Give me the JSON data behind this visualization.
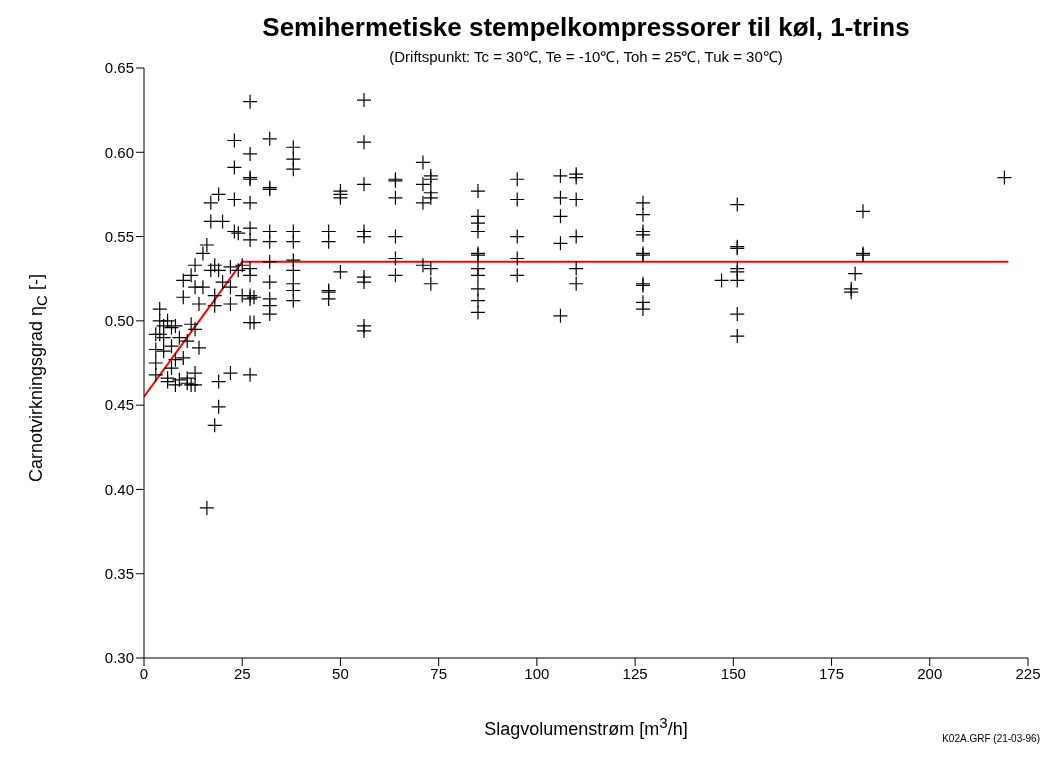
{
  "chart_data": {
    "type": "scatter",
    "title": "Semihermetiske stempelkompressorer til køl, 1-trins",
    "subtitle": "(Driftspunkt: Tc = 30℃, Te = -10℃, Toh = 25℃, Tuk = 30℃)",
    "xlabel": "Slagvolumenstrøm  [m$^{3}$/h]",
    "ylabel": "Carnotvirkningsgrad η$_{C}$ [-]",
    "annotations": [
      "K02A.GRF   (21-03-96)"
    ],
    "xlim": [
      0,
      225
    ],
    "xticks": [
      0,
      25,
      50,
      75,
      100,
      125,
      150,
      175,
      200,
      225
    ],
    "ylim": [
      0.3,
      0.65
    ],
    "yticks": [
      {
        "value": 0.3,
        "label": "0.30"
      },
      0.35,
      {
        "value": 0.4,
        "label": "0.40"
      },
      0.45,
      {
        "value": 0.5,
        "label": "0.50"
      },
      0.55,
      {
        "value": 0.6,
        "label": "0.60"
      },
      0.65
    ],
    "series": [
      {
        "marker": "cross",
        "color": "#000000",
        "x": [
          3,
          3,
          3,
          3,
          4,
          4,
          4,
          5,
          5,
          5,
          6,
          6,
          6,
          7,
          7,
          7,
          8,
          8,
          8,
          9,
          9,
          10,
          10,
          10,
          11,
          11,
          11,
          12,
          12,
          12,
          13,
          13,
          13,
          13,
          13,
          14,
          14,
          15,
          15,
          16,
          16,
          17,
          17,
          17,
          18,
          18,
          18,
          18,
          19,
          19,
          19,
          19,
          20,
          20,
          22,
          22,
          22,
          22,
          23,
          23,
          23,
          23,
          24,
          24,
          25,
          25,
          27,
          27,
          27,
          27,
          27,
          27,
          27,
          27,
          27,
          27,
          27,
          27,
          27,
          28,
          28,
          32,
          32,
          32,
          32,
          32,
          32,
          32,
          32,
          32,
          32,
          38,
          38,
          38,
          38,
          38,
          38,
          38,
          38,
          38,
          38,
          47,
          47,
          47,
          47,
          47,
          50,
          50,
          50,
          50,
          56,
          56,
          56,
          56,
          56,
          56,
          56,
          56,
          56,
          64,
          64,
          64,
          64,
          64,
          64,
          71,
          71,
          71,
          71,
          73,
          73,
          73,
          73,
          73,
          73,
          85,
          85,
          85,
          85,
          85,
          85,
          85,
          85,
          85,
          85,
          85,
          95,
          95,
          95,
          95,
          95,
          106,
          106,
          106,
          106,
          106,
          110,
          110,
          110,
          110,
          110,
          110,
          127,
          127,
          127,
          127,
          127,
          127,
          127,
          127,
          127,
          127,
          147,
          151,
          151,
          151,
          151,
          151,
          151,
          151,
          151,
          180,
          180,
          181,
          183,
          183,
          183,
          219
        ],
        "values": [
          0.483,
          0.475,
          0.468,
          0.492,
          0.507,
          0.5,
          0.492,
          0.497,
          0.49,
          0.482,
          0.5,
          0.466,
          0.464,
          0.496,
          0.485,
          0.472,
          0.497,
          0.462,
          0.477,
          0.49,
          0.465,
          0.524,
          0.514,
          0.478,
          0.463,
          0.466,
          0.488,
          0.527,
          0.498,
          0.462,
          0.533,
          0.52,
          0.469,
          0.495,
          0.462,
          0.51,
          0.484,
          0.54,
          0.52,
          0.545,
          0.389,
          0.559,
          0.57,
          0.53,
          0.533,
          0.509,
          0.515,
          0.438,
          0.575,
          0.53,
          0.464,
          0.449,
          0.559,
          0.523,
          0.532,
          0.52,
          0.51,
          0.469,
          0.607,
          0.591,
          0.572,
          0.553,
          0.552,
          0.53,
          0.533,
          0.515,
          0.63,
          0.599,
          0.585,
          0.584,
          0.57,
          0.555,
          0.548,
          0.531,
          0.527,
          0.515,
          0.513,
          0.499,
          0.468,
          0.499,
          0.514,
          0.608,
          0.579,
          0.578,
          0.553,
          0.547,
          0.535,
          0.523,
          0.513,
          0.509,
          0.504,
          0.603,
          0.596,
          0.59,
          0.553,
          0.547,
          0.536,
          0.53,
          0.522,
          0.518,
          0.512,
          0.553,
          0.547,
          0.518,
          0.517,
          0.513,
          0.577,
          0.575,
          0.573,
          0.529,
          0.631,
          0.606,
          0.581,
          0.553,
          0.55,
          0.526,
          0.523,
          0.497,
          0.494,
          0.584,
          0.583,
          0.573,
          0.55,
          0.537,
          0.527,
          0.594,
          0.581,
          0.57,
          0.533,
          0.586,
          0.584,
          0.576,
          0.573,
          0.531,
          0.522,
          0.577,
          0.562,
          0.558,
          0.553,
          0.54,
          0.539,
          0.531,
          0.527,
          0.519,
          0.512,
          0.505,
          0.584,
          0.572,
          0.55,
          0.537,
          0.527,
          0.586,
          0.573,
          0.562,
          0.546,
          0.503,
          0.587,
          0.585,
          0.572,
          0.55,
          0.531,
          0.522,
          0.57,
          0.563,
          0.553,
          0.551,
          0.54,
          0.539,
          0.522,
          0.521,
          0.511,
          0.507,
          0.524,
          0.569,
          0.544,
          0.543,
          0.531,
          0.529,
          0.524,
          0.504,
          0.491,
          0.517,
          0.519,
          0.528,
          0.565,
          0.539,
          0.54,
          0.585
        ]
      },
      {
        "type": "line",
        "color": "#ff0000",
        "x": [
          0,
          25,
          220
        ],
        "values": [
          0.455,
          0.535,
          0.535
        ]
      }
    ]
  }
}
